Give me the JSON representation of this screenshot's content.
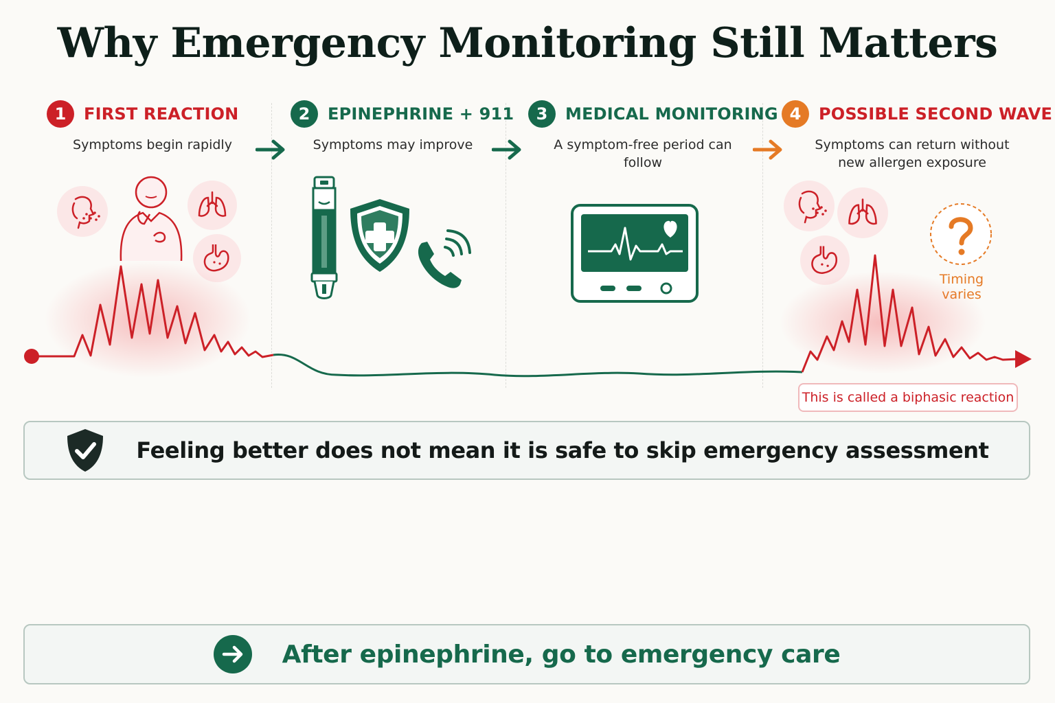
{
  "title": "Why Emergency Monitoring Still Matters",
  "steps": [
    {
      "number": "1",
      "label": "FIRST REACTION",
      "subtitle": "Symptoms begin rapidly"
    },
    {
      "number": "2",
      "label": "EPINEPHRINE + 911",
      "subtitle": "Symptoms may improve"
    },
    {
      "number": "3",
      "label": "MEDICAL MONITORING",
      "subtitle": "A symptom-free period can follow"
    },
    {
      "number": "4",
      "label": "POSSIBLE SECOND WAVE",
      "subtitle_line1": "Symptoms can return without",
      "subtitle_line2": "new allergen exposure"
    }
  ],
  "timing_note": "Timing varies",
  "biphasic_label": "This is called a biphasic reaction",
  "warning_callout": "Feeling better does not mean it is safe to skip emergency assessment",
  "action_callout": "After epinephrine, go to emergency care",
  "colors": {
    "red": "#cc2027",
    "green": "#16694c",
    "orange": "#e57a25"
  },
  "icons": [
    "face-rash-icon",
    "person-distress-icon",
    "lungs-icon",
    "stomach-icon",
    "auto-injector-icon",
    "medical-shield-icon",
    "phone-call-icon",
    "heart-monitor-icon",
    "question-icon",
    "check-shield-icon",
    "arrow-circle-icon"
  ]
}
